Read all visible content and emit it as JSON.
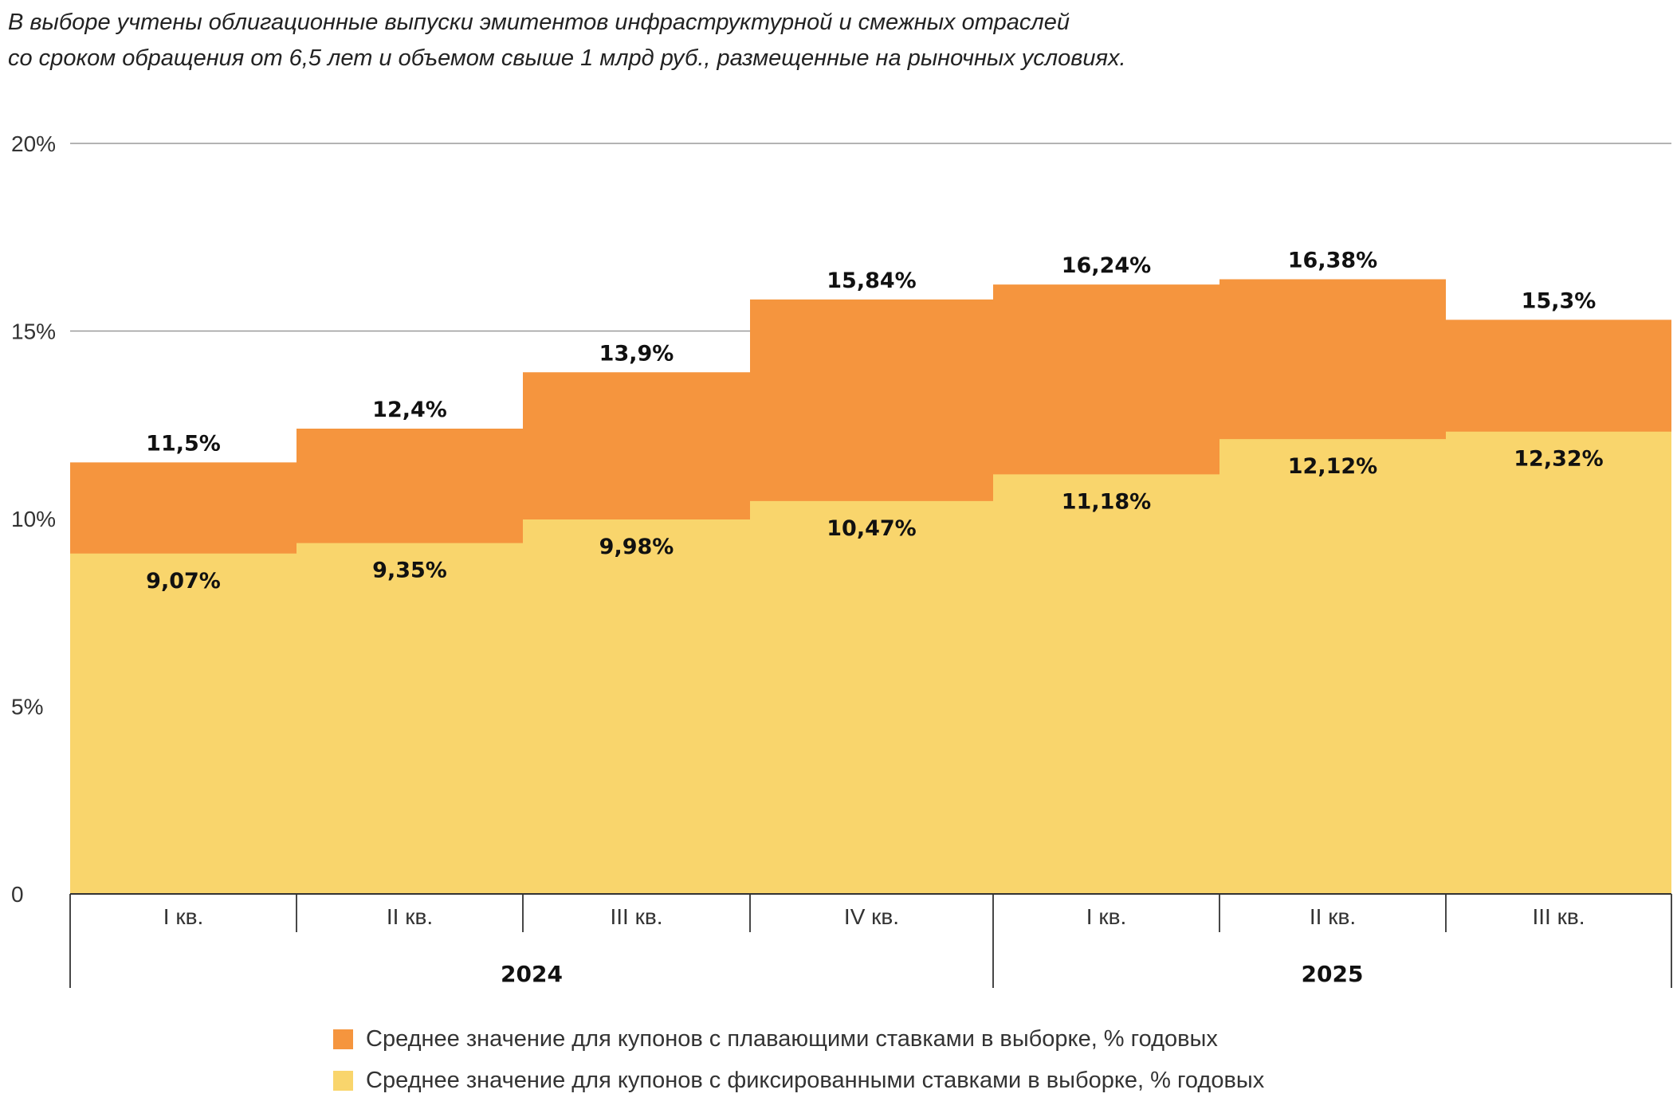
{
  "note": {
    "line1": "В выборе учтены облигационные выпуски эмитентов инфраструктурной и смежных отраслей",
    "line2": "со сроком обращения от 6,5 лет и объемом свыше 1 млрд руб., размещенные на рыночных условиях."
  },
  "colors": {
    "floating": "#F5953E",
    "fixed": "#F9D56C",
    "grid": "#9a9a9a",
    "axis": "#333333"
  },
  "chart_data": {
    "type": "area",
    "subtype": "stepped-overlapping",
    "categories": [
      "I кв.",
      "II кв.",
      "III кв.",
      "IV кв.",
      "I кв.",
      "II кв.",
      "III кв."
    ],
    "groups": [
      {
        "label": "2024",
        "span": 4
      },
      {
        "label": "2025",
        "span": 3
      }
    ],
    "series": [
      {
        "name": "Среднее значение для купонов с плавающими ставками в выборке, % годовых",
        "key": "floating",
        "values": [
          11.5,
          12.4,
          13.9,
          15.84,
          16.24,
          16.38,
          15.3
        ],
        "labels": [
          "11,5%",
          "12,4%",
          "13,9%",
          "15,84%",
          "16,24%",
          "16,38%",
          "15,3%"
        ]
      },
      {
        "name": "Среднее значение для купонов с фиксированными ставками в выборке, % годовых",
        "key": "fixed",
        "values": [
          9.07,
          9.35,
          9.98,
          10.47,
          11.18,
          12.12,
          12.32
        ],
        "labels": [
          "9,07%",
          "9,35%",
          "9,98%",
          "10,47%",
          "11,18%",
          "12,12%",
          "12,32%"
        ]
      }
    ],
    "yticks": [
      0,
      5,
      10,
      15,
      20
    ],
    "ytick_labels": [
      "0",
      "5%",
      "10%",
      "15%",
      "20%"
    ],
    "ylim": [
      0,
      20
    ],
    "grid": true,
    "legend_position": "bottom"
  }
}
